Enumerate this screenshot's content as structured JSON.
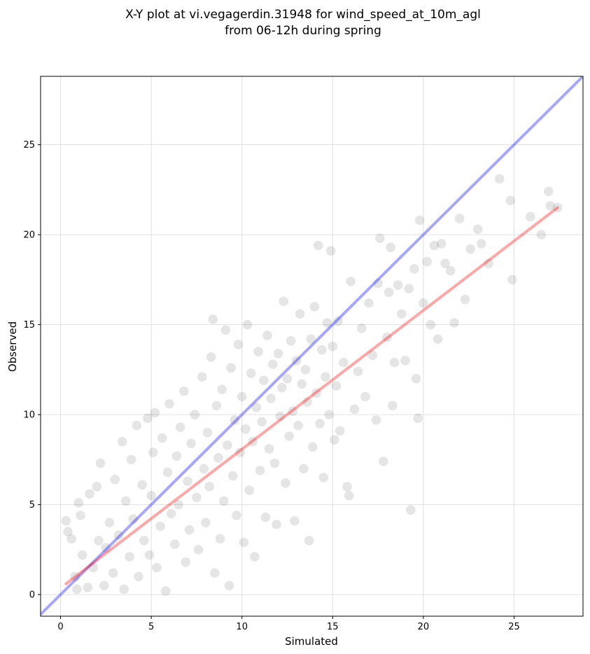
{
  "chart_data": {
    "type": "scatter",
    "title_lines": [
      "X-Y plot at vi.vegagerdin.31948 for wind_speed_at_10m_agl",
      "from 06-12h during spring"
    ],
    "xlabel": "Simulated",
    "ylabel": "Observed",
    "xlim": [
      -1.1,
      28.8
    ],
    "ylim": [
      -1.2,
      28.8
    ],
    "xticks": [
      0,
      5,
      10,
      15,
      20,
      25
    ],
    "yticks": [
      0,
      5,
      10,
      15,
      20,
      25
    ],
    "grid": true,
    "colors": {
      "points": "#000000",
      "identity_line": "#0000ff",
      "fit_line": "#ff0000",
      "grid": "#e0e0e0"
    },
    "identity_line": {
      "x": [
        -1.1,
        28.8
      ],
      "y": [
        -1.1,
        28.8
      ]
    },
    "fit_line": {
      "x": [
        0.3,
        27.4
      ],
      "y": [
        0.6,
        21.5
      ]
    },
    "points": [
      [
        0.3,
        4.1
      ],
      [
        0.4,
        3.5
      ],
      [
        0.6,
        3.1
      ],
      [
        0.8,
        1.0
      ],
      [
        0.9,
        0.3
      ],
      [
        1.0,
        5.1
      ],
      [
        1.1,
        4.4
      ],
      [
        1.2,
        2.2
      ],
      [
        1.5,
        0.4
      ],
      [
        1.6,
        5.6
      ],
      [
        1.8,
        1.5
      ],
      [
        2.0,
        6.0
      ],
      [
        2.1,
        3.0
      ],
      [
        2.2,
        7.3
      ],
      [
        2.4,
        0.5
      ],
      [
        2.5,
        2.6
      ],
      [
        2.7,
        4.0
      ],
      [
        2.9,
        1.2
      ],
      [
        3.0,
        6.4
      ],
      [
        3.2,
        3.3
      ],
      [
        3.4,
        8.5
      ],
      [
        3.5,
        0.3
      ],
      [
        3.6,
        5.2
      ],
      [
        3.8,
        2.1
      ],
      [
        3.9,
        7.5
      ],
      [
        4.0,
        4.2
      ],
      [
        4.2,
        9.4
      ],
      [
        4.3,
        1.0
      ],
      [
        4.5,
        6.1
      ],
      [
        4.6,
        3.0
      ],
      [
        4.8,
        9.8
      ],
      [
        4.9,
        2.2
      ],
      [
        5.0,
        5.5
      ],
      [
        5.1,
        7.9
      ],
      [
        5.2,
        10.1
      ],
      [
        5.3,
        1.5
      ],
      [
        5.5,
        3.8
      ],
      [
        5.6,
        8.7
      ],
      [
        5.8,
        0.2
      ],
      [
        5.9,
        6.8
      ],
      [
        6.0,
        10.6
      ],
      [
        6.1,
        4.5
      ],
      [
        6.3,
        2.8
      ],
      [
        6.4,
        7.7
      ],
      [
        6.5,
        5.0
      ],
      [
        6.6,
        9.3
      ],
      [
        6.8,
        11.3
      ],
      [
        6.9,
        1.8
      ],
      [
        7.0,
        6.3
      ],
      [
        7.1,
        3.6
      ],
      [
        7.2,
        8.4
      ],
      [
        7.4,
        10.0
      ],
      [
        7.5,
        5.4
      ],
      [
        7.6,
        2.5
      ],
      [
        7.8,
        12.1
      ],
      [
        7.9,
        7.0
      ],
      [
        8.0,
        4.0
      ],
      [
        8.1,
        9.0
      ],
      [
        8.2,
        6.0
      ],
      [
        8.3,
        13.2
      ],
      [
        8.4,
        15.3
      ],
      [
        8.5,
        1.2
      ],
      [
        8.6,
        10.5
      ],
      [
        8.7,
        7.6
      ],
      [
        8.8,
        3.1
      ],
      [
        8.9,
        11.4
      ],
      [
        9.0,
        5.2
      ],
      [
        9.1,
        14.7
      ],
      [
        9.2,
        8.3
      ],
      [
        9.3,
        0.5
      ],
      [
        9.4,
        12.6
      ],
      [
        9.5,
        6.6
      ],
      [
        9.6,
        9.7
      ],
      [
        9.7,
        4.4
      ],
      [
        9.8,
        13.9
      ],
      [
        9.9,
        7.9
      ],
      [
        10.0,
        11.0
      ],
      [
        10.1,
        2.9
      ],
      [
        10.2,
        9.2
      ],
      [
        10.3,
        15.0
      ],
      [
        10.4,
        5.8
      ],
      [
        10.5,
        12.3
      ],
      [
        10.6,
        8.5
      ],
      [
        10.7,
        2.1
      ],
      [
        10.8,
        10.4
      ],
      [
        10.9,
        13.5
      ],
      [
        11.0,
        6.9
      ],
      [
        11.1,
        9.6
      ],
      [
        11.2,
        11.9
      ],
      [
        11.3,
        4.3
      ],
      [
        11.4,
        14.4
      ],
      [
        11.5,
        8.1
      ],
      [
        11.6,
        10.9
      ],
      [
        11.7,
        12.8
      ],
      [
        11.8,
        7.3
      ],
      [
        11.9,
        3.9
      ],
      [
        12.0,
        13.4
      ],
      [
        12.1,
        9.9
      ],
      [
        12.2,
        11.5
      ],
      [
        12.3,
        16.3
      ],
      [
        12.4,
        6.2
      ],
      [
        12.5,
        12.0
      ],
      [
        12.6,
        8.8
      ],
      [
        12.7,
        14.1
      ],
      [
        12.8,
        10.2
      ],
      [
        12.9,
        4.1
      ],
      [
        13.0,
        13.0
      ],
      [
        13.1,
        9.4
      ],
      [
        13.2,
        15.6
      ],
      [
        13.3,
        11.7
      ],
      [
        13.4,
        7.0
      ],
      [
        13.5,
        12.5
      ],
      [
        13.6,
        10.7
      ],
      [
        13.7,
        3.0
      ],
      [
        13.8,
        14.2
      ],
      [
        13.9,
        8.2
      ],
      [
        14.0,
        16.0
      ],
      [
        14.1,
        11.2
      ],
      [
        14.2,
        19.4
      ],
      [
        14.3,
        9.5
      ],
      [
        14.4,
        13.6
      ],
      [
        14.5,
        6.5
      ],
      [
        14.6,
        12.1
      ],
      [
        14.7,
        15.1
      ],
      [
        14.8,
        10.0
      ],
      [
        14.9,
        19.1
      ],
      [
        15.0,
        13.8
      ],
      [
        15.1,
        8.6
      ],
      [
        15.2,
        11.6
      ],
      [
        15.3,
        15.2
      ],
      [
        15.4,
        9.1
      ],
      [
        15.6,
        12.9
      ],
      [
        15.8,
        6.0
      ],
      [
        15.9,
        5.5
      ],
      [
        16.0,
        17.4
      ],
      [
        16.2,
        10.3
      ],
      [
        16.4,
        12.4
      ],
      [
        16.6,
        14.8
      ],
      [
        16.8,
        11.0
      ],
      [
        17.0,
        16.2
      ],
      [
        17.2,
        13.3
      ],
      [
        17.4,
        9.7
      ],
      [
        17.5,
        17.3
      ],
      [
        17.6,
        19.8
      ],
      [
        17.8,
        7.4
      ],
      [
        18.0,
        14.3
      ],
      [
        18.1,
        16.8
      ],
      [
        18.2,
        19.3
      ],
      [
        18.3,
        10.5
      ],
      [
        18.4,
        12.9
      ],
      [
        18.6,
        17.2
      ],
      [
        18.8,
        15.6
      ],
      [
        19.0,
        13.0
      ],
      [
        19.2,
        17.0
      ],
      [
        19.3,
        4.7
      ],
      [
        19.5,
        18.1
      ],
      [
        19.6,
        12.0
      ],
      [
        19.7,
        9.8
      ],
      [
        19.8,
        20.8
      ],
      [
        20.0,
        16.2
      ],
      [
        20.2,
        18.5
      ],
      [
        20.4,
        15.0
      ],
      [
        20.6,
        19.4
      ],
      [
        20.8,
        14.2
      ],
      [
        21.0,
        19.5
      ],
      [
        21.2,
        18.4
      ],
      [
        21.5,
        18.0
      ],
      [
        21.7,
        15.1
      ],
      [
        22.0,
        20.9
      ],
      [
        22.3,
        16.4
      ],
      [
        22.6,
        19.2
      ],
      [
        23.0,
        20.3
      ],
      [
        23.2,
        19.5
      ],
      [
        23.6,
        18.4
      ],
      [
        24.2,
        23.1
      ],
      [
        24.8,
        21.9
      ],
      [
        24.9,
        17.5
      ],
      [
        25.9,
        21.0
      ],
      [
        26.5,
        20.0
      ],
      [
        26.9,
        22.4
      ],
      [
        27.0,
        21.6
      ],
      [
        27.4,
        21.5
      ]
    ]
  }
}
